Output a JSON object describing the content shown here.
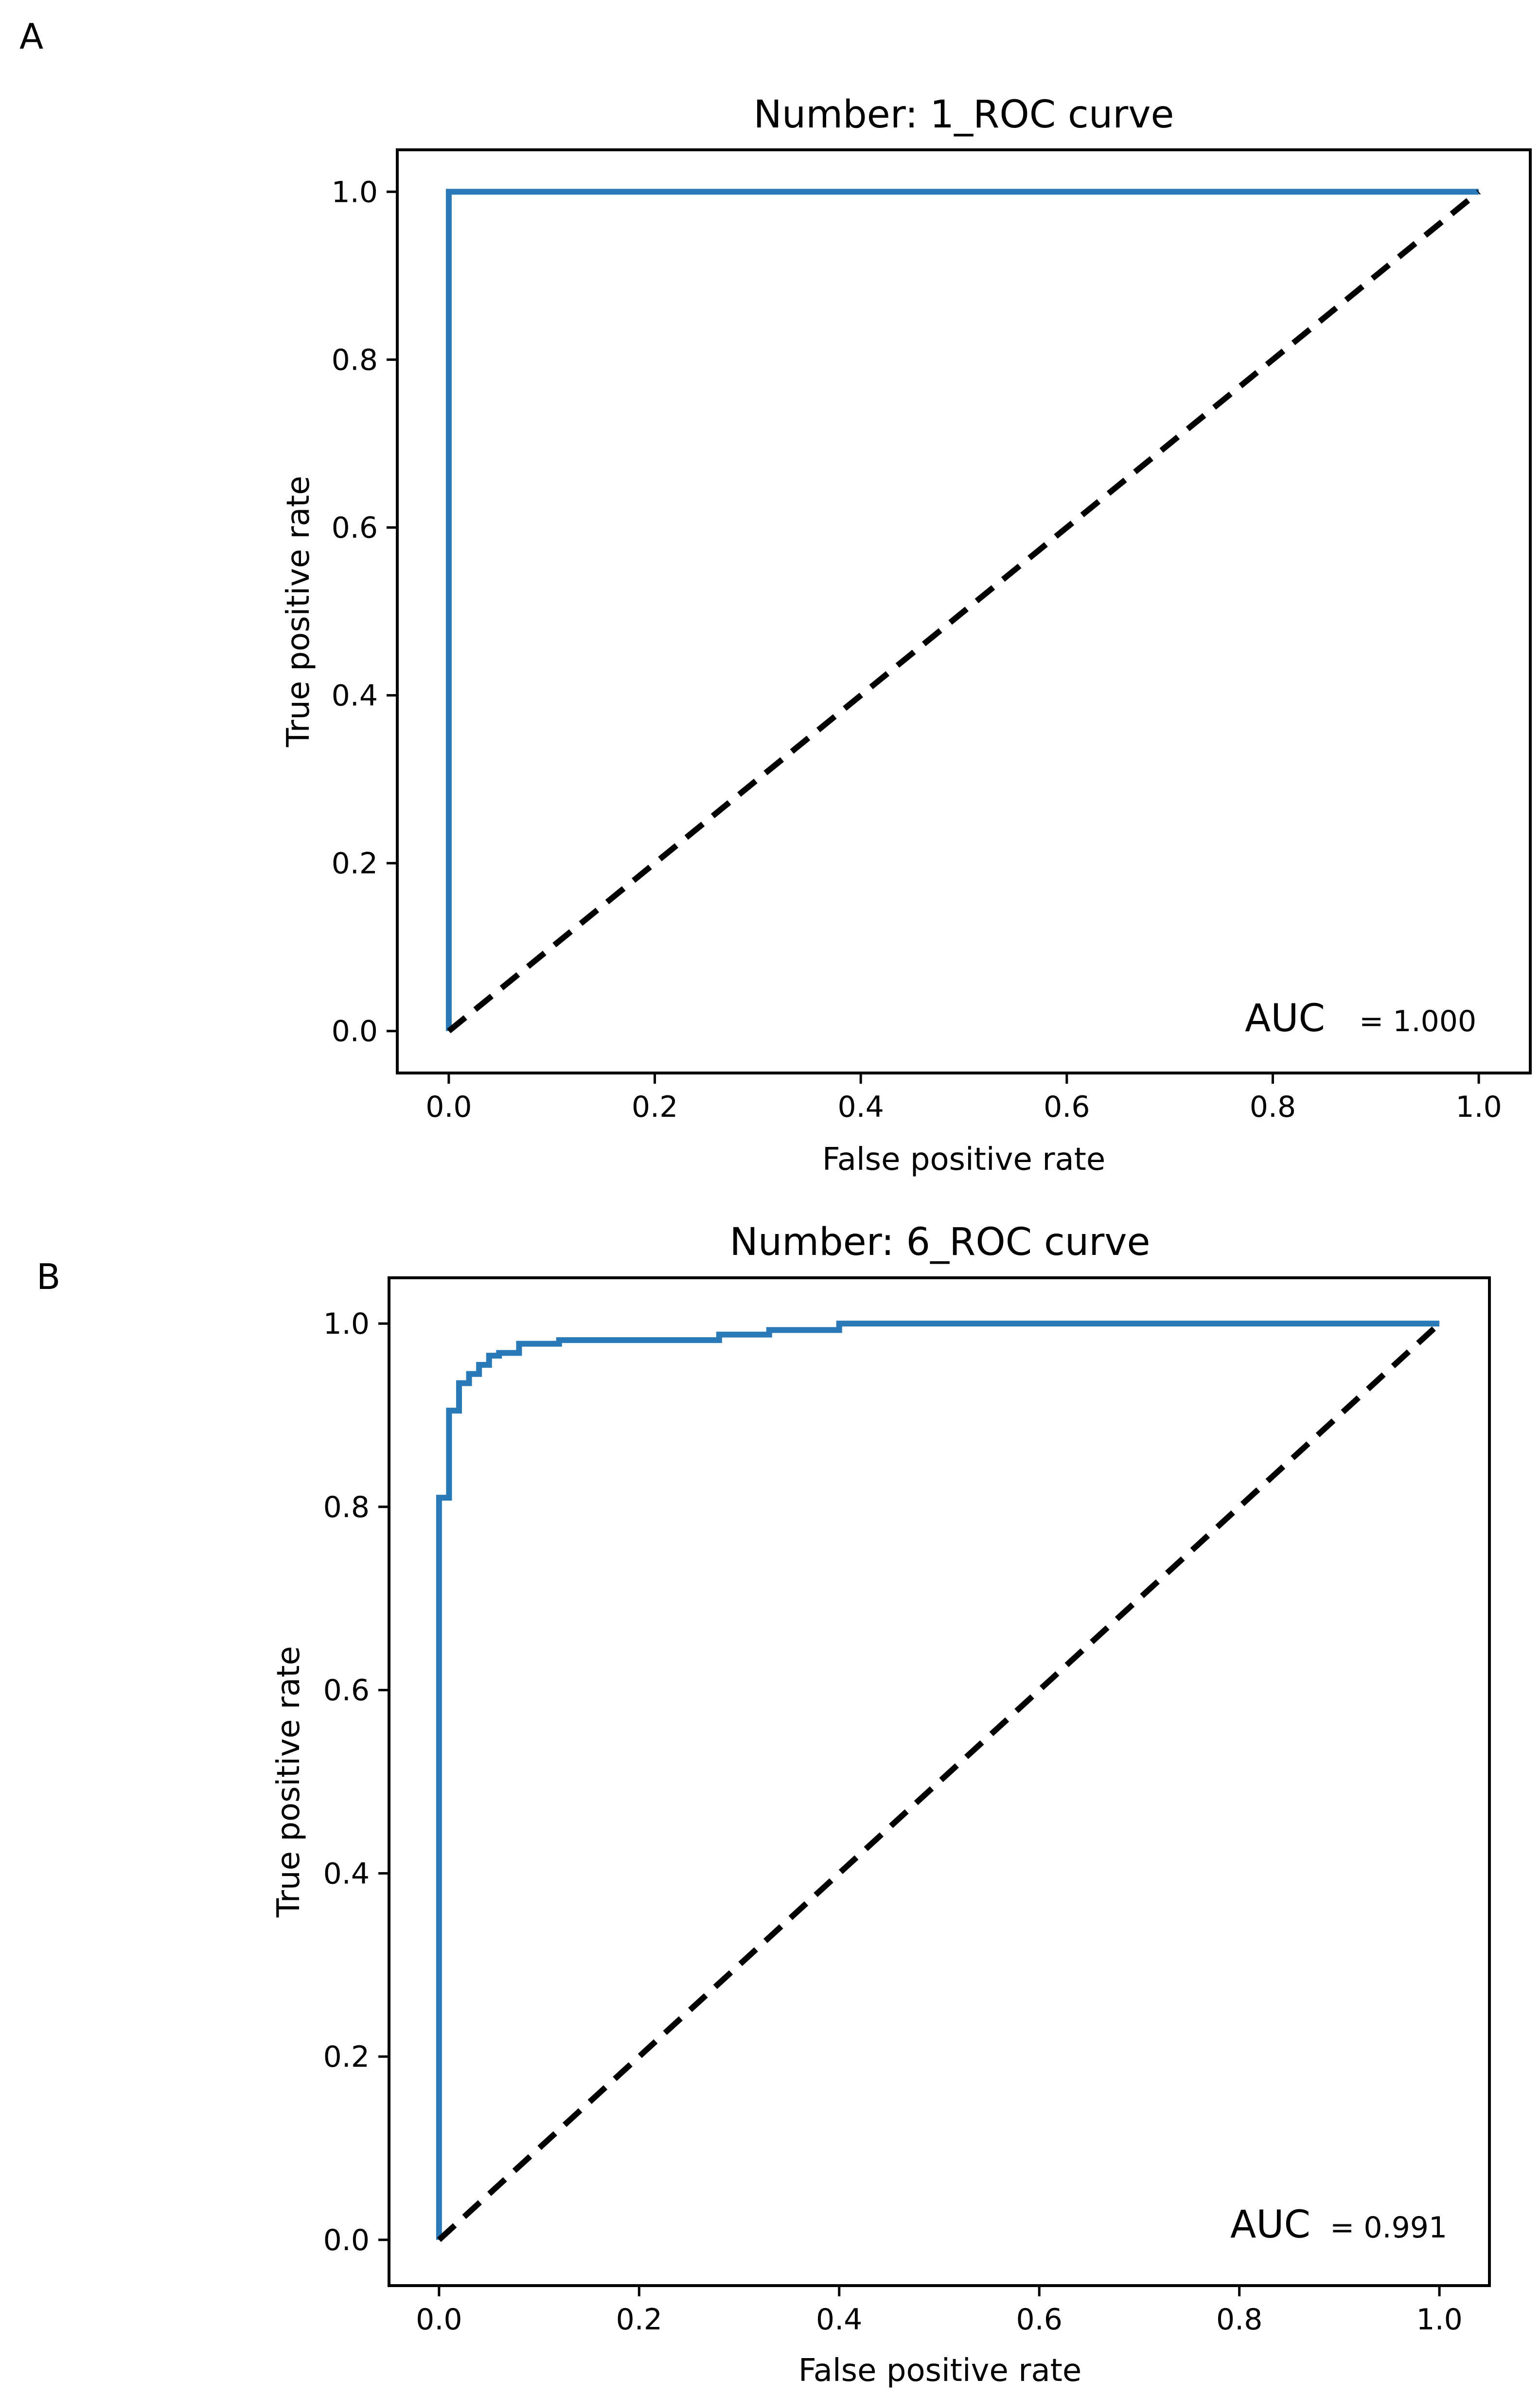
{
  "colors": {
    "roc_line": "#2a7ab8",
    "chance_line": "#000000"
  },
  "chart_data": [
    {
      "type": "line",
      "panel": "A",
      "title": "Number:  1_ROC curve",
      "xlabel": "False positive rate",
      "ylabel": "True positive rate",
      "xlim": [
        -0.05,
        1.05
      ],
      "ylim": [
        -0.05,
        1.05
      ],
      "xticks": [
        0.0,
        0.2,
        0.4,
        0.6,
        0.8,
        1.0
      ],
      "xtick_labels": [
        "0.0",
        "0.2",
        "0.4",
        "0.6",
        "0.8",
        "1.0"
      ],
      "yticks": [
        0.0,
        0.2,
        0.4,
        0.6,
        0.8,
        1.0
      ],
      "ytick_labels": [
        "0.0",
        "0.2",
        "0.4",
        "0.6",
        "0.8",
        "1.0"
      ],
      "auc_label": "AUC",
      "auc_value": "= 1.000",
      "series": [
        {
          "name": "ROC curve",
          "style": "solid",
          "x": [
            0.0,
            0.0,
            1.0
          ],
          "y": [
            0.0,
            1.0,
            1.0
          ]
        },
        {
          "name": "chance",
          "style": "dashed",
          "x": [
            0.0,
            1.0
          ],
          "y": [
            0.0,
            1.0
          ]
        }
      ]
    },
    {
      "type": "line",
      "panel": "B",
      "title": "Number:  6_ROC curve",
      "xlabel": "False positive rate",
      "ylabel": "True positive rate",
      "xlim": [
        -0.05,
        1.05
      ],
      "ylim": [
        -0.05,
        1.05
      ],
      "xticks": [
        0.0,
        0.2,
        0.4,
        0.6,
        0.8,
        1.0
      ],
      "xtick_labels": [
        "0.0",
        "0.2",
        "0.4",
        "0.6",
        "0.8",
        "1.0"
      ],
      "yticks": [
        0.0,
        0.2,
        0.4,
        0.6,
        0.8,
        1.0
      ],
      "ytick_labels": [
        "0.0",
        "0.2",
        "0.4",
        "0.6",
        "0.8",
        "1.0"
      ],
      "auc_label": "AUC",
      "auc_value": "= 0.991",
      "series": [
        {
          "name": "ROC curve",
          "style": "solid",
          "x": [
            0.0,
            0.0,
            0.01,
            0.01,
            0.02,
            0.02,
            0.03,
            0.03,
            0.04,
            0.04,
            0.05,
            0.05,
            0.06,
            0.06,
            0.08,
            0.08,
            0.12,
            0.12,
            0.28,
            0.28,
            0.33,
            0.33,
            0.4,
            0.4,
            1.0
          ],
          "y": [
            0.0,
            0.81,
            0.81,
            0.905,
            0.905,
            0.935,
            0.935,
            0.945,
            0.945,
            0.955,
            0.955,
            0.965,
            0.965,
            0.968,
            0.968,
            0.978,
            0.978,
            0.982,
            0.982,
            0.988,
            0.988,
            0.993,
            0.993,
            1.0,
            1.0
          ]
        },
        {
          "name": "chance",
          "style": "dashed",
          "x": [
            0.0,
            1.0
          ],
          "y": [
            0.0,
            1.0
          ]
        }
      ]
    }
  ]
}
